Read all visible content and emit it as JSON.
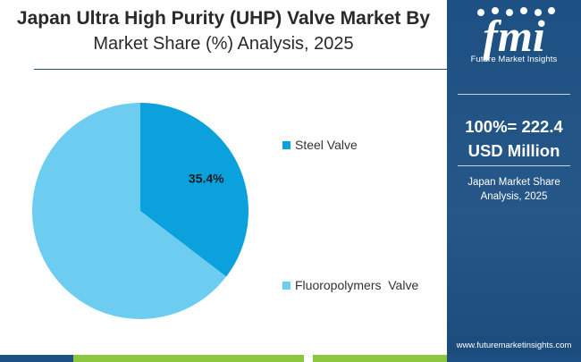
{
  "title": {
    "line1": "Japan Ultra High Purity (UHP) Valve Market By",
    "line2": "Market Share (%) Analysis, 2025"
  },
  "chart_data": {
    "type": "pie",
    "title": "Japan Ultra High Purity (UHP) Valve Market By Market Share (%) Analysis, 2025",
    "slices": [
      {
        "name": "Steel Valve",
        "value": 35.4,
        "label": "35.4%",
        "color": "#0aa1dc"
      },
      {
        "name": "Fluoropolymers  Valve",
        "value": 64.6,
        "label": "",
        "color": "#6dcdf1"
      }
    ],
    "start_angle_deg": 0,
    "direction": "clockwise",
    "legend_position": "right"
  },
  "legend": [
    {
      "label": "Steel Valve",
      "color": "#0aa1dc"
    },
    {
      "label": "Fluoropolymers  Valve",
      "color": "#6dcdf1"
    }
  ],
  "panel": {
    "logo_text": "fmi",
    "logo_sub": "Future Market Insights",
    "total_line1": "100%= 222.4",
    "total_line2": "USD Million",
    "caption_line1": "Japan Market Share",
    "caption_line2": "Analysis, 2025",
    "url": "www.futuremarketinsights.com",
    "bg_color": "#1d5083"
  },
  "bottom_bar_colors": [
    "#1d5083",
    "#8cc63f",
    "#1d5083",
    "#8cc63f",
    "#1d5083"
  ]
}
